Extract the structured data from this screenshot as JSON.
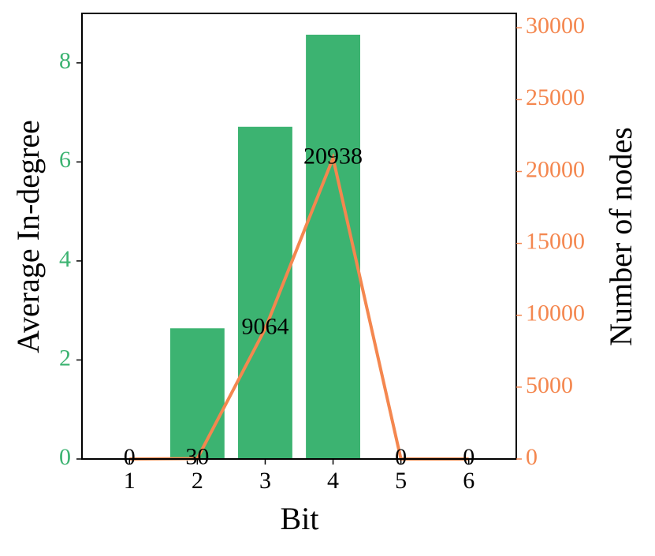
{
  "chart_data": {
    "type": "bar_line",
    "x_label": "Bit",
    "y_label": "Average In-degree",
    "y2_label": "Number of nodes",
    "x": [
      1,
      2,
      3,
      4,
      5,
      6
    ],
    "xlim": [
      0.3,
      6.7
    ],
    "xticks": [
      1,
      2,
      3,
      4,
      5,
      6
    ],
    "ylim": [
      0,
      9
    ],
    "yticks": [
      0,
      2,
      4,
      6,
      8
    ],
    "y2lim": [
      0,
      31000
    ],
    "y2ticks": [
      0,
      5000,
      10000,
      15000,
      20000,
      25000,
      30000
    ],
    "series": [
      {
        "type": "bar",
        "color": "#3cb371",
        "values": [
          0,
          2.64,
          6.71,
          8.57,
          0,
          0
        ]
      },
      {
        "type": "line",
        "axis": "y2",
        "color": "#f4874f",
        "values": [
          0,
          30,
          9064,
          20938,
          0,
          0
        ]
      }
    ]
  }
}
